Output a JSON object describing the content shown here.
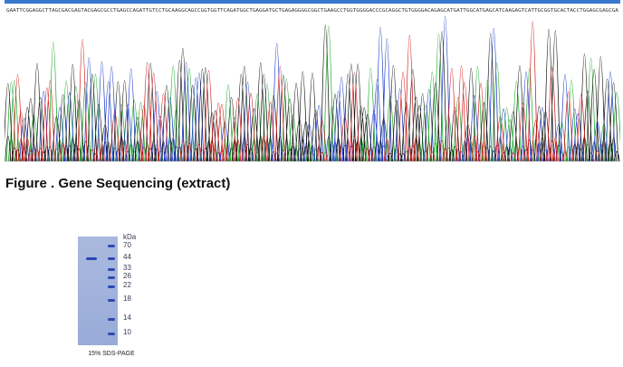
{
  "figure_caption": "Figure . Gene Sequencing (extract)",
  "chromatogram": {
    "base_colors": {
      "A": "#1aa82a",
      "C": "#1536c9",
      "G": "#111111",
      "T": "#d21414"
    },
    "sequence_text": "GAATTCGGAGGCTTAGCGACGAGTACGAGCGCCTGAGCCAGATTGTCCTGCAAGGCAGCCGGTGGTTCAGATGGCTGAGGATGCTGAGAGGGGCGGCTGAAGCCTGGTGGGGACCCGCAGGCTGTGGGGACAGAGCATGATTGGCATGAGCATCAAGAGTCATTGCGGTGCACTACCTGGAGCGAGCGA"
  },
  "gel": {
    "kda_label": "kDa",
    "markers": [
      "70",
      "44",
      "33",
      "26",
      "22",
      "18",
      "14",
      "10"
    ],
    "caption": "15% SDS-PAGE"
  }
}
